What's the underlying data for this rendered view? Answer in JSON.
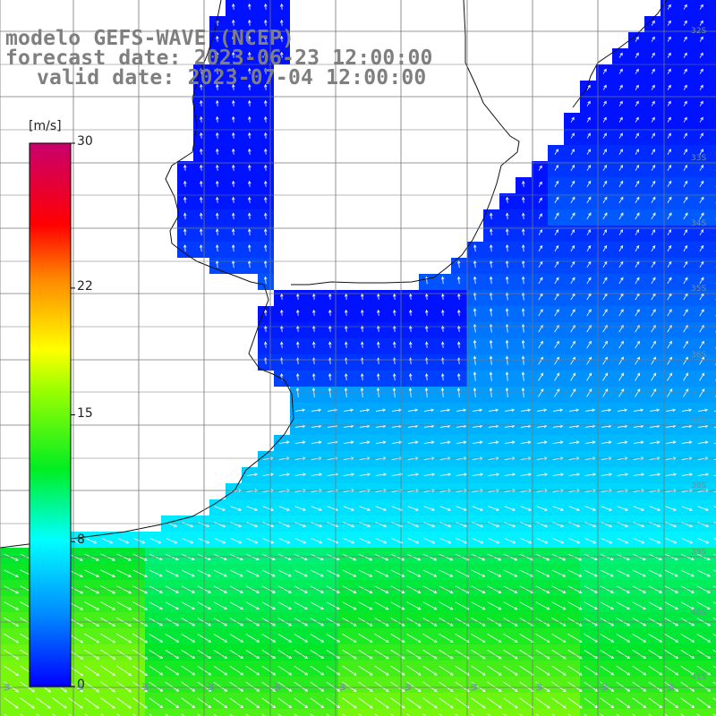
{
  "header": {
    "model": "modelo GEFS-WAVE (NCEP)",
    "forecast": "forecast date: 2023-06-23 12:00:00",
    "valid": "valid date: 2023-07-04 12:00:00"
  },
  "colorbar": {
    "unit": "[m/s]",
    "ticks": [
      {
        "label": "30",
        "value": 30
      },
      {
        "label": "22",
        "value": 22
      },
      {
        "label": "15",
        "value": 15
      },
      {
        "label": "8",
        "value": 8
      },
      {
        "label": "0",
        "value": 0
      }
    ],
    "stops": [
      "#0000ff",
      "#00aaff",
      "#00ffff",
      "#00ff00",
      "#ffff00",
      "#ff8800",
      "#ff0000",
      "#c8006e"
    ]
  },
  "lat_labels": [
    "32S",
    "33S",
    "34S",
    "35S",
    "36S",
    "37S",
    "38S",
    "39S",
    "40S",
    "41S"
  ],
  "lon_labels": [
    "W",
    "W",
    "W",
    "W",
    "W",
    "W",
    "W",
    "W",
    "W",
    "W",
    "W"
  ]
}
